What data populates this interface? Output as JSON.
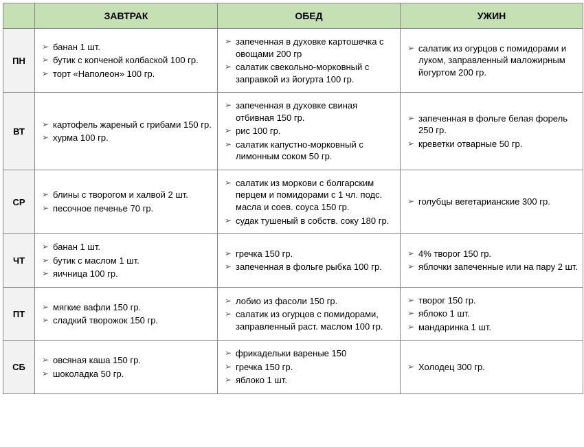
{
  "colors": {
    "header_bg": "#c5e0b3",
    "day_bg": "#f2f2f2",
    "cell_bg": "#ffffff",
    "border": "#888888",
    "bullet": "#555555"
  },
  "headers": {
    "breakfast": "ЗАВТРАК",
    "lunch": "ОБЕД",
    "dinner": "УЖИН"
  },
  "days": [
    {
      "label": "ПН",
      "breakfast": [
        "банан 1 шт.",
        "бутик с копченой колбаской 100 гр.",
        "торт «Наполеон» 100 гр."
      ],
      "lunch": [
        "запеченная в духовке картошечка с овощами 200 гр",
        "салатик свекольно-морковный с заправкой из йогурта 100 гр."
      ],
      "dinner": [
        "салатик из огурцов с помидорами и луком, заправленный маложирным йогуртом 200 гр."
      ]
    },
    {
      "label": "ВТ",
      "breakfast": [
        "картофель жареный с грибами 150 гр.",
        "хурма 100 гр."
      ],
      "lunch": [
        "запеченная в духовке свиная отбивная 150 гр.",
        "рис 100 гр.",
        "салатик капустно-морковный с лимонным соком 50 гр."
      ],
      "dinner": [
        "запеченная в фольге белая форель 250 гр.",
        "креветки отварные 50 гр."
      ]
    },
    {
      "label": "СР",
      "breakfast": [
        "блины с творогом и халвой 2 шт.",
        "песочное печенье 70 гр."
      ],
      "lunch": [
        "салатик из моркови с болгарским перцем и помидорами с 1 чл. подс. масла и соев. соуса 150 гр.",
        "судак тушеный в собств. соку 180 гр."
      ],
      "dinner": [
        "голубцы вегетарианские 300 гр."
      ]
    },
    {
      "label": "ЧТ",
      "breakfast": [
        "банан 1 шт.",
        "бутик с маслом 1 шт.",
        "яичница 100 гр."
      ],
      "lunch": [
        "гречка 150 гр.",
        "запеченная в фольге рыбка 100 гр."
      ],
      "dinner": [
        "4% творог 150 гр.",
        "яблочки запеченные или на пару 2 шт."
      ]
    },
    {
      "label": "ПТ",
      "breakfast": [
        "мягкие вафли 150 гр.",
        "сладкий творожок 150 гр."
      ],
      "lunch": [
        "лобио из фасоли 150 гр.",
        "салатик из огурцов с помидорами, заправленный раст. маслом 100 гр."
      ],
      "dinner": [
        "творог 150 гр.",
        "яблоко 1 шт.",
        "мандаринка 1 шт."
      ]
    },
    {
      "label": "СБ",
      "breakfast": [
        "овсяная каша 150 гр.",
        "шоколадка 50 гр."
      ],
      "lunch": [
        "фрикадельки вареные 150",
        "гречка 150 гр.",
        "яблоко 1 шт."
      ],
      "dinner": [
        "Холодец 300 гр."
      ]
    }
  ]
}
